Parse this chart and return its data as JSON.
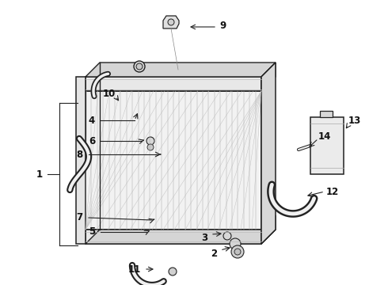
{
  "bg_color": "#ffffff",
  "line_color": "#222222",
  "label_color": "#111111",
  "figsize": [
    4.9,
    3.6
  ],
  "dpi": 100,
  "rad_fill": "#f2f2f2",
  "tank_fill": "#e0e0e0",
  "hose_color": "#dddddd",
  "bottle_fill": "#eeeeee"
}
